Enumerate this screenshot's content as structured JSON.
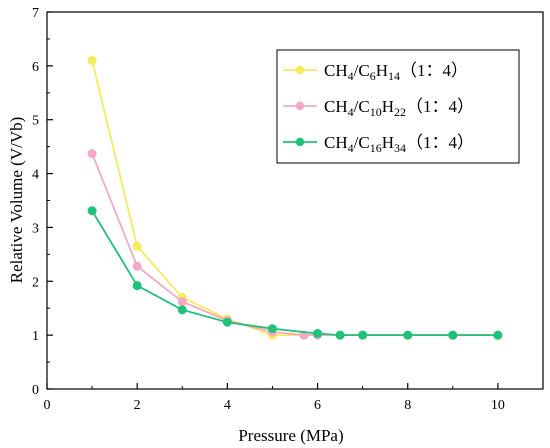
{
  "chart_data": {
    "type": "line",
    "xlabel": "Pressure (MPa)",
    "ylabel": "Relative Volume (V/Vb)",
    "xlim": [
      0,
      11
    ],
    "ylim": [
      0,
      7
    ],
    "xticks": [
      0,
      2,
      4,
      6,
      8,
      10
    ],
    "yticks": [
      0,
      1,
      2,
      3,
      4,
      5,
      6,
      7
    ],
    "grid": false,
    "legend_position": "top-right",
    "series": [
      {
        "name_parts": [
          {
            "t": "CH",
            "sub": false
          },
          {
            "t": "4",
            "sub": true
          },
          {
            "t": "/C",
            "sub": false
          },
          {
            "t": "6",
            "sub": true
          },
          {
            "t": "H",
            "sub": false
          },
          {
            "t": "14",
            "sub": true
          },
          {
            "t": "（1：4）",
            "sub": false
          }
        ],
        "color": "#F7EA5B",
        "x": [
          1,
          2,
          3,
          4,
          5,
          5.7,
          6,
          6.5,
          7,
          8,
          9,
          10
        ],
        "y": [
          6.1,
          2.65,
          1.7,
          1.3,
          1.0,
          1.0,
          1.0,
          1.0,
          1.0,
          1.0,
          1.0,
          1.0
        ]
      },
      {
        "name_parts": [
          {
            "t": "CH",
            "sub": false
          },
          {
            "t": "4",
            "sub": true
          },
          {
            "t": "/C",
            "sub": false
          },
          {
            "t": "10",
            "sub": true
          },
          {
            "t": "H",
            "sub": false
          },
          {
            "t": "22",
            "sub": true
          },
          {
            "t": "（1：4）",
            "sub": false
          }
        ],
        "color": "#F4A8C6",
        "x": [
          1,
          2,
          3,
          4,
          5,
          5.7,
          6,
          6.5,
          7,
          8,
          9,
          10
        ],
        "y": [
          4.37,
          2.28,
          1.62,
          1.27,
          1.06,
          1.0,
          1.0,
          1.0,
          1.0,
          1.0,
          1.0,
          1.0
        ]
      },
      {
        "name_parts": [
          {
            "t": "CH",
            "sub": false
          },
          {
            "t": "4",
            "sub": true
          },
          {
            "t": "/C",
            "sub": false
          },
          {
            "t": "16",
            "sub": true
          },
          {
            "t": "H",
            "sub": false
          },
          {
            "t": "34",
            "sub": true
          },
          {
            "t": "（1：4）",
            "sub": false
          }
        ],
        "color": "#1FC27A",
        "x": [
          1,
          2,
          3,
          4,
          5,
          6,
          6.5,
          7,
          8,
          9,
          10
        ],
        "y": [
          3.31,
          1.92,
          1.47,
          1.24,
          1.12,
          1.03,
          1.0,
          1.0,
          1.0,
          1.0,
          1.0
        ]
      }
    ]
  }
}
